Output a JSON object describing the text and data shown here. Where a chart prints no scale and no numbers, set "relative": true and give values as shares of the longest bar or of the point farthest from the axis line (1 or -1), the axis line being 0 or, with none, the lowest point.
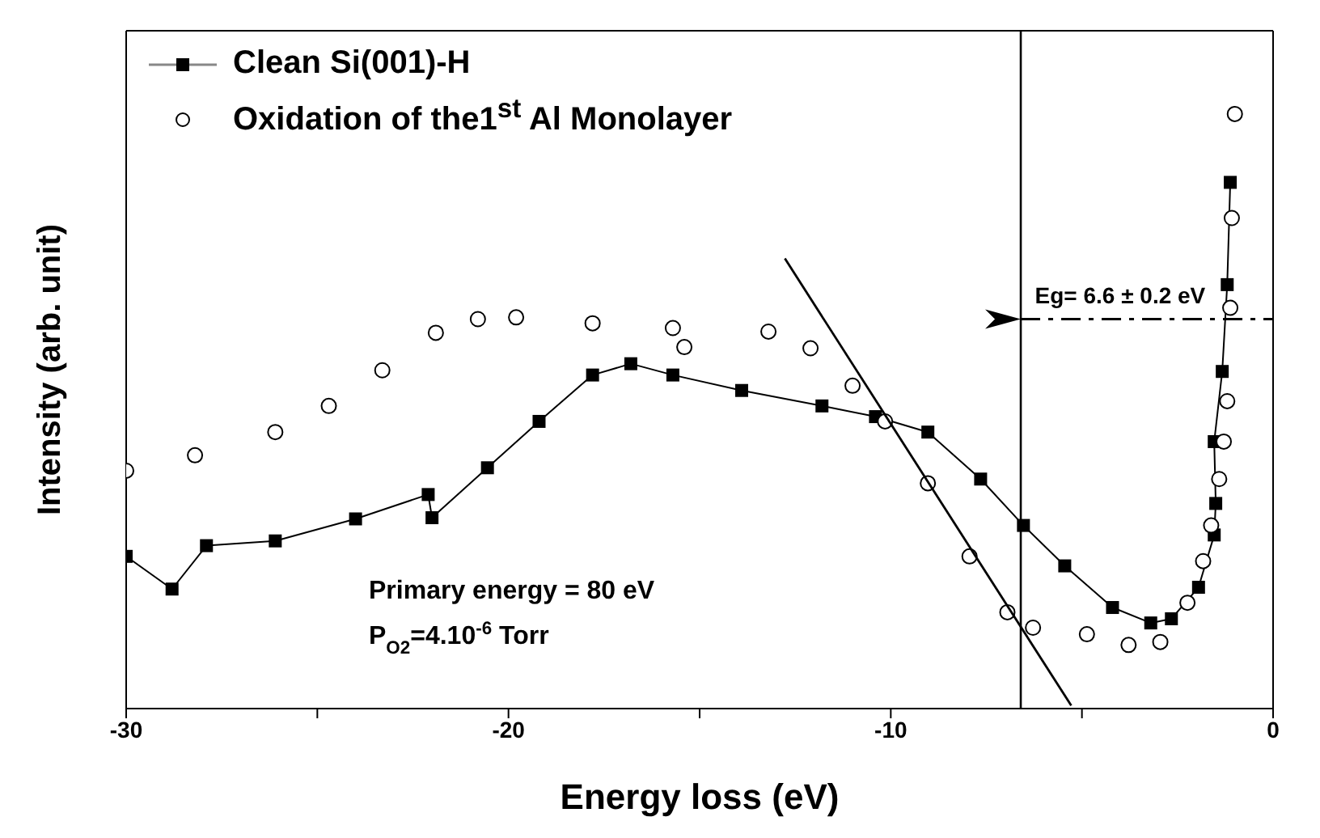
{
  "chart_data": {
    "type": "scatter",
    "relative": true,
    "xlabel": "Energy loss (eV)",
    "ylabel": "Intensity (arb. unit)",
    "xlim": [
      -30,
      0
    ],
    "xticks": [
      -30,
      {
        "value": -25,
        "label": null
      },
      -20,
      {
        "value": -15,
        "label": null
      },
      -10,
      {
        "value": -5,
        "label": null
      },
      0
    ],
    "legend": "top left",
    "series": [
      {
        "name": "Clean Si(001)-H",
        "type": "line",
        "marker": "square",
        "color": "#000000",
        "x": [
          -30,
          -28.8,
          -27.9,
          -26.1,
          -24.0,
          -22.1,
          -22.0,
          -20.55,
          -19.2,
          -17.8,
          -16.8,
          -15.7,
          -13.9,
          -11.8,
          -10.4,
          -9.03,
          -7.65,
          -6.53,
          -5.45,
          -4.2,
          -3.2,
          -2.66,
          -1.95,
          -1.54,
          -1.5,
          -1.54,
          -1.33,
          -1.2,
          -1.12
        ],
        "values": [
          0.256,
          0.201,
          0.274,
          0.282,
          0.319,
          0.36,
          0.321,
          0.405,
          0.483,
          0.561,
          0.58,
          0.561,
          0.535,
          0.509,
          0.491,
          0.465,
          0.386,
          0.308,
          0.24,
          0.17,
          0.144,
          0.151,
          0.204,
          0.292,
          0.345,
          0.449,
          0.567,
          0.713,
          0.885
        ]
      },
      {
        "name": "Oxidation of the1$^{st}$ Al Monolayer",
        "marker": "circle",
        "color": "#000000",
        "x": [
          -30,
          -28.2,
          -26.1,
          -24.7,
          -23.3,
          -21.9,
          -20.8,
          -19.8,
          -17.8,
          -15.7,
          -15.4,
          -13.2,
          -12.1,
          -11.0,
          -10.15,
          -9.03,
          -7.94,
          -6.95,
          -6.28,
          -4.87,
          -3.78,
          -2.95,
          -2.24,
          -1.83,
          -1.62,
          -1.41,
          -1.29,
          -1.2,
          -1.12,
          -1.08,
          -1.0
        ],
        "values": [
          0.4,
          0.426,
          0.465,
          0.509,
          0.569,
          0.632,
          0.655,
          0.658,
          0.648,
          0.64,
          0.608,
          0.634,
          0.606,
          0.543,
          0.483,
          0.379,
          0.256,
          0.162,
          0.136,
          0.125,
          0.107,
          0.112,
          0.178,
          0.248,
          0.308,
          0.386,
          0.449,
          0.517,
          0.674,
          0.825,
          1.0
        ]
      },
      {
        "type": "line",
        "marker": "none",
        "color": "#000000",
        "x": [
          -12.77,
          -5.28
        ],
        "values": [
          0.757,
          0.005
        ]
      },
      {
        "type": "line",
        "marker": "none",
        "line_style": "dashed",
        "color": "#000000",
        "x": [
          -6.6,
          0
        ],
        "values": [
          0.655,
          0.655
        ]
      }
    ],
    "ref_lines": [
      {
        "axis": "x",
        "value": -6.6,
        "color": "#000000"
      }
    ],
    "annotations": [
      {
        "text": "Eg= 6.6 ± 0.2 eV",
        "x": -4.0,
        "y": 0.655
      },
      "Primary energy = 80 eV",
      "P$_{O2}$=4.10$^{-6}$ Torr"
    ]
  }
}
